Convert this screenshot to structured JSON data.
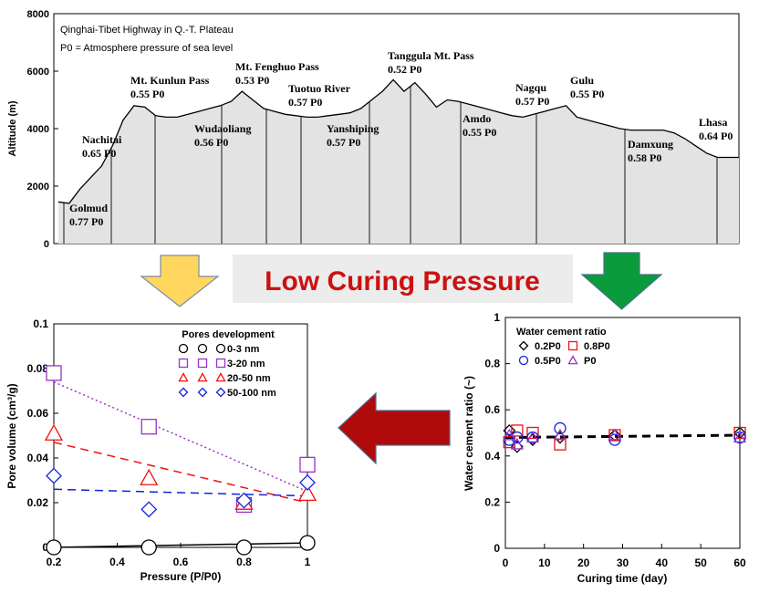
{
  "banner": {
    "text": "Low Curing Pressure",
    "color": "#cc1111",
    "background": "#ececec"
  },
  "arrows": [
    {
      "name": "yellow-down-arrow",
      "color": "#ffd75e",
      "direction": "down"
    },
    {
      "name": "green-down-arrow",
      "color": "#0a9b3c",
      "direction": "down"
    },
    {
      "name": "red-left-arrow",
      "color": "#b00a0a",
      "direction": "left"
    }
  ],
  "chart_data": [
    {
      "type": "area",
      "title": "Qinghai-Tibet Highway in Q.-T. Plateau",
      "note": "P0 = Atmosphere pressure of sea level",
      "ylabel": "Altitude (m)",
      "ylim": [
        0,
        8000
      ],
      "yticks": [
        "0",
        "2000",
        "4000",
        "6000",
        "8000"
      ],
      "fill_color": "#e3e3e3",
      "profile_altitude": [
        1450,
        1400,
        1900,
        2300,
        2700,
        3400,
        4300,
        4800,
        4750,
        4450,
        4400,
        4400,
        4500,
        4600,
        4700,
        4800,
        4950,
        5300,
        5000,
        4700,
        4600,
        4500,
        4450,
        4400,
        4400,
        4450,
        4500,
        4550,
        4700,
        5000,
        5300,
        5700,
        5300,
        5600,
        5200,
        4750,
        5000,
        4950,
        4850,
        4750,
        4650,
        4550,
        4450,
        4400,
        4500,
        4600,
        4700,
        4800,
        4400,
        4300,
        4200,
        4100,
        4000,
        3950,
        3950,
        3950,
        3950,
        3850,
        3650,
        3400,
        3150,
        3000,
        3000,
        3000
      ],
      "stations": [
        {
          "name": "Golmud",
          "pressure": "0.77 P0"
        },
        {
          "name": "Nachitai",
          "pressure": "0.65 P0"
        },
        {
          "name": "Mt. Kunlun Pass",
          "pressure": "0.55 P0"
        },
        {
          "name": "Wudaoliang",
          "pressure": "0.56 P0"
        },
        {
          "name": "Mt. Fenghuo Pass",
          "pressure": "0.53 P0"
        },
        {
          "name": "Tuotuo River",
          "pressure": "0.57 P0"
        },
        {
          "name": "Yanshiping",
          "pressure": "0.57 P0"
        },
        {
          "name": "Tanggula Mt. Pass",
          "pressure": "0.52 P0"
        },
        {
          "name": "Amdo",
          "pressure": "0.55 P0"
        },
        {
          "name": "Nagqu",
          "pressure": "0.57 P0"
        },
        {
          "name": "Gulu",
          "pressure": "0.55 P0"
        },
        {
          "name": "Damxung",
          "pressure": "0.58 P0"
        },
        {
          "name": "Lhasa",
          "pressure": "0.64 P0"
        }
      ]
    },
    {
      "type": "scatter",
      "xlabel": "Pressure (P/P0)",
      "ylabel": "Pore volume (cm³/g)",
      "xlim": [
        0.2,
        1.0
      ],
      "ylim": [
        0,
        0.1
      ],
      "xticks": [
        "0.2",
        "0.4",
        "0.6",
        "0.8",
        "1"
      ],
      "yticks": [
        "0",
        "0.02",
        "0.04",
        "0.06",
        "0.08",
        "0.1"
      ],
      "legend_title": "Pores development",
      "legend_position": "top-right",
      "x": [
        0.2,
        0.5,
        0.8,
        1.0
      ],
      "series": [
        {
          "name": "0-3 nm",
          "marker": "circle",
          "color": "#000000",
          "values": [
            0.0,
            0.0,
            0.0,
            0.002
          ],
          "trend": [
            0.0,
            0.002
          ],
          "trend_style": "solid"
        },
        {
          "name": "3-20 nm",
          "marker": "square",
          "color": "#9933cc",
          "values": [
            0.078,
            0.054,
            0.019,
            0.037
          ],
          "trend": [
            0.074,
            0.025
          ],
          "trend_style": "dotted"
        },
        {
          "name": "20-50 nm",
          "marker": "triangle",
          "color": "#ee1111",
          "values": [
            0.051,
            0.031,
            0.02,
            0.024
          ],
          "trend": [
            0.047,
            0.02
          ],
          "trend_style": "dashed"
        },
        {
          "name": "50-100 nm",
          "marker": "diamond",
          "color": "#1122dd",
          "values": [
            0.032,
            0.017,
            0.021,
            0.029
          ],
          "trend": [
            0.026,
            0.023
          ],
          "trend_style": "dashed"
        }
      ]
    },
    {
      "type": "scatter",
      "xlabel": "Curing time (day)",
      "ylabel": "Water cement ratio (~)",
      "xlim": [
        0,
        60
      ],
      "ylim": [
        0,
        1
      ],
      "xticks": [
        "0",
        "10",
        "20",
        "30",
        "40",
        "50",
        "60"
      ],
      "yticks": [
        "0",
        "0.2",
        "0.4",
        "0.6",
        "0.8",
        "1"
      ],
      "legend_title": "Water cement ratio",
      "legend_position": "top-left",
      "x": [
        1,
        3,
        7,
        14,
        28,
        60
      ],
      "series": [
        {
          "name": "0.2P0",
          "marker": "diamond",
          "color": "#000000",
          "values": [
            0.51,
            0.44,
            0.47,
            0.48,
            0.49,
            0.5
          ]
        },
        {
          "name": "0.8P0",
          "marker": "square",
          "color": "#ee1111",
          "values": [
            0.46,
            0.51,
            0.5,
            0.45,
            0.49,
            0.5
          ]
        },
        {
          "name": "0.5P0",
          "marker": "circle",
          "color": "#1122dd",
          "values": [
            0.47,
            0.48,
            0.48,
            0.52,
            0.47,
            0.48
          ]
        },
        {
          "name": "P0",
          "marker": "triangle",
          "color": "#9933cc",
          "values": [
            0.49,
            0.45,
            0.48,
            0.49,
            0.49,
            0.48
          ]
        }
      ],
      "trend": {
        "from": [
          0,
          0.48
        ],
        "to": [
          60,
          0.49
        ],
        "style": "dashed"
      }
    }
  ]
}
